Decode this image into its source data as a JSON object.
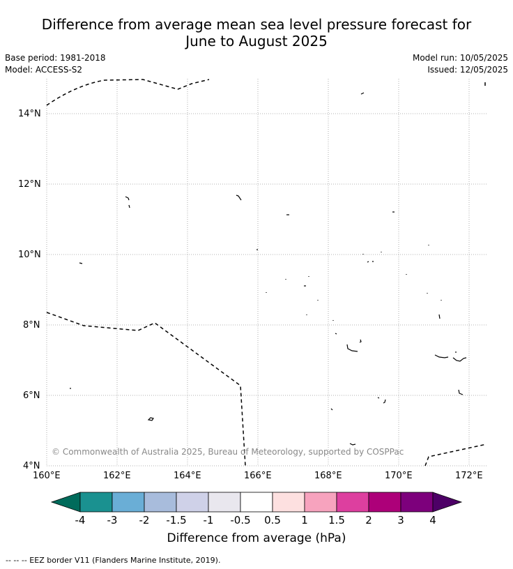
{
  "title": {
    "line1": "Difference from average mean sea level pressure forecast for",
    "line2": "June to August 2025"
  },
  "meta": {
    "base_period": "Base period: 1981-2018",
    "model": "Model: ACCESS-S2",
    "model_run": "Model run: 10/05/2025",
    "issued": "Issued: 12/05/2025"
  },
  "map": {
    "lon_ticks": [
      "160°E",
      "162°E",
      "164°E",
      "166°E",
      "168°E",
      "170°E",
      "172°E"
    ],
    "lat_ticks": [
      "4°N",
      "6°N",
      "8°N",
      "10°N",
      "12°N",
      "14°N"
    ],
    "lon_range": [
      160,
      172.5
    ],
    "lat_range": [
      3.9,
      15
    ],
    "credit": "© Commonwealth of Australia 2025, Bureau of Meteorology, supported by COSPPac"
  },
  "colorbar": {
    "title": "Difference from average (hPa)",
    "labels": [
      "-4",
      "-3",
      "-2",
      "-1.5",
      "-1",
      "-0.5",
      "0.5",
      "1",
      "1.5",
      "2",
      "3",
      "4"
    ],
    "colors": [
      "#006b5b",
      "#1a9190",
      "#6aaed6",
      "#a8bcdc",
      "#cfd1e8",
      "#e9e7ee",
      "#ffffff",
      "#fde0e0",
      "#f7a3be",
      "#dd3f9f",
      "#ad0079",
      "#7d007c",
      "#4d0066"
    ]
  },
  "footnote": "--  --  -- EEZ border V11 (Flanders Marine Institute, 2019)."
}
